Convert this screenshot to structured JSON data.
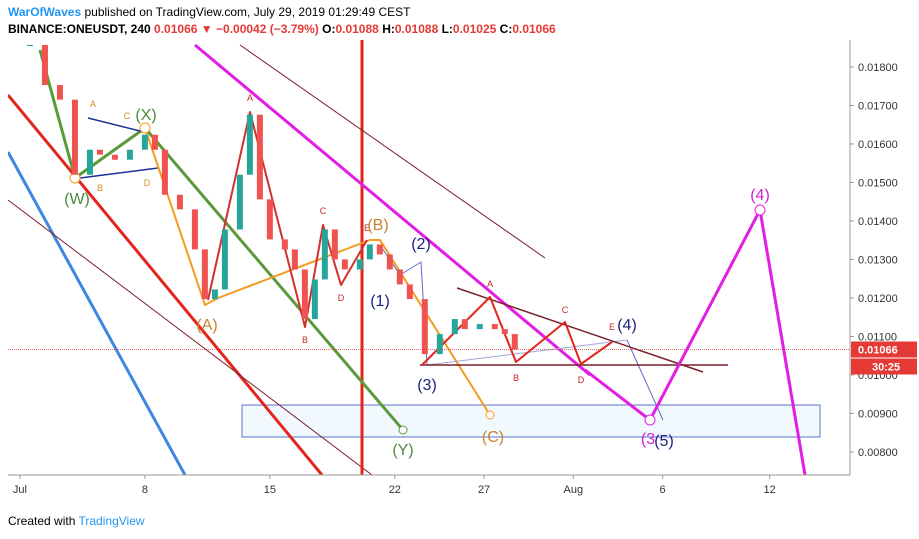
{
  "header": {
    "author": "WarOfWaves",
    "published": "published on TradingView.com, July 29, 2019 01:29:49 CEST",
    "symbol": "BINANCE:ONEUSDT, 240",
    "arrow": "▼",
    "change": "−0.00042 (−3.79%)",
    "ohlc": [
      {
        "label": "O:",
        "value": "0.01088"
      },
      {
        "label": "H:",
        "value": "0.01088"
      },
      {
        "label": "L:",
        "value": "0.01025"
      },
      {
        "label": "C:",
        "value": "0.01066"
      }
    ]
  },
  "footer": {
    "text": "Created with",
    "brand": "TradingView"
  },
  "chart_data": {
    "type": "candlestick",
    "x": [
      1.56,
      2.4,
      3.24,
      4.08,
      4.92,
      5.48,
      6.32,
      7.16,
      8.0,
      8.56,
      9.12,
      9.96,
      10.8,
      11.36,
      11.92,
      12.48,
      13.32,
      13.88,
      14.44,
      15.0,
      15.84,
      16.4,
      16.96,
      17.52,
      18.08,
      18.64,
      19.2,
      20.04,
      20.6,
      21.16,
      21.72,
      22.28,
      22.84,
      23.68,
      24.52,
      25.36,
      25.92,
      26.76,
      27.6,
      28.16,
      28.72
    ],
    "close": [
      0.01857,
      0.01753,
      0.01715,
      0.0152,
      0.01585,
      0.01572,
      0.01559,
      0.01585,
      0.01624,
      0.01585,
      0.01468,
      0.0143,
      0.01326,
      0.01197,
      0.01222,
      0.01378,
      0.0152,
      0.01676,
      0.01456,
      0.01352,
      0.01326,
      0.01274,
      0.01145,
      0.01248,
      0.01378,
      0.013,
      0.01274,
      0.013,
      0.01339,
      0.01313,
      0.01274,
      0.01235,
      0.01197,
      0.01054,
      0.01106,
      0.01145,
      0.01119,
      0.01132,
      0.01119,
      0.01106,
      0.01066
    ],
    "up_color": "#26a69a",
    "down_color": "#ef5350",
    "last_price": 0.01066,
    "price_line_color": "#e53935",
    "countdown": "30:25",
    "xlim": [
      0.33,
      47.5
    ],
    "xticks": [
      {
        "value": 1,
        "label": "Jul"
      },
      8,
      15,
      22,
      27,
      {
        "value": 32,
        "label": "Aug"
      },
      {
        "value": 37,
        "label": "6"
      },
      {
        "value": 43,
        "label": "12"
      }
    ],
    "ylim": [
      0.0074,
      0.0187
    ],
    "yticks": [
      {
        "value": 0.018,
        "label": "0.01800"
      },
      {
        "value": 0.017,
        "label": "0.01700"
      },
      {
        "value": 0.016,
        "label": "0.01600"
      },
      {
        "value": 0.015,
        "label": "0.01500"
      },
      {
        "value": 0.014,
        "label": "0.01400"
      },
      {
        "value": 0.013,
        "label": "0.01300"
      },
      {
        "value": 0.012,
        "label": "0.01200"
      },
      {
        "value": 0.011,
        "label": "0.01100"
      },
      {
        "value": 0.01,
        "label": "0.01000"
      },
      {
        "value": 0.009,
        "label": "0.00900"
      },
      {
        "value": 0.008,
        "label": "0.00800"
      }
    ],
    "grid": false,
    "annotations": [
      {
        "text": "(W)",
        "color": "#4e8a3a"
      },
      {
        "text": "(X)",
        "color": "#4e8a3a"
      },
      {
        "text": "A",
        "color": "#d9891c"
      },
      {
        "text": "C",
        "color": "#d9891c"
      },
      {
        "text": "B",
        "color": "#d9891c"
      },
      {
        "text": "D",
        "color": "#d9891c"
      },
      {
        "text": "(A)",
        "color": "#c9822e"
      },
      {
        "text": "A",
        "color": "#c62828"
      },
      {
        "text": "B",
        "color": "#c62828"
      },
      {
        "text": "C",
        "color": "#c62828"
      },
      {
        "text": "D",
        "color": "#c62828"
      },
      {
        "text": "E",
        "color": "#c62828"
      },
      {
        "text": "(B)",
        "color": "#c9822e"
      },
      {
        "text": "(1)",
        "color": "#1a237e"
      },
      {
        "text": "(2)",
        "color": "#1a237e"
      },
      {
        "text": "(3)",
        "color": "#1a237e"
      },
      {
        "text": "(C)",
        "color": "#c9822e"
      },
      {
        "text": "(Y)",
        "color": "#4e8a3a"
      },
      {
        "text": "A",
        "color": "#c62828"
      },
      {
        "text": "B",
        "color": "#c62828"
      },
      {
        "text": "C",
        "color": "#c62828"
      },
      {
        "text": "D",
        "color": "#c62828"
      },
      {
        "text": "E",
        "color": "#c62828"
      },
      {
        "text": "(4)",
        "color": "#1a237e"
      },
      {
        "text": "(3",
        "color": "#d21fd2"
      },
      {
        "text": "(5)",
        "color": "#1a237e"
      },
      {
        "text": "(4)",
        "color": "#d21fd2"
      }
    ]
  }
}
